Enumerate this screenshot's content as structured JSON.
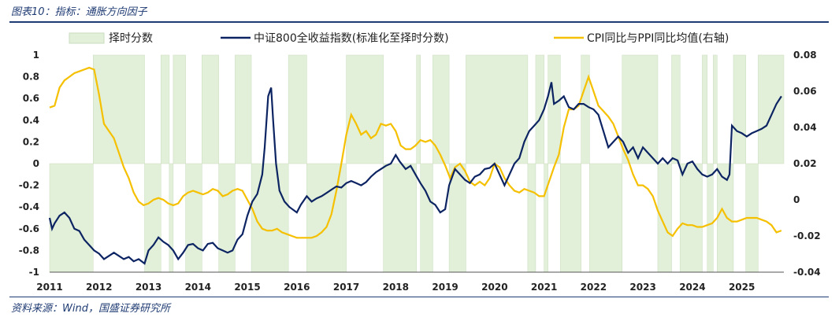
{
  "header": {
    "title": "图表10：指标：通胀方向因子"
  },
  "footer": {
    "source": "资料来源：Wind，国盛证券研究所"
  },
  "chart_data": {
    "type": "line",
    "xlim": [
      2011,
      2025.85
    ],
    "ylim_left": [
      -1,
      1
    ],
    "ylim_right": [
      -0.04,
      0.08
    ],
    "x_ticks": [
      "2011",
      "2012",
      "2013",
      "2014",
      "2015",
      "2016",
      "2017",
      "2018",
      "2019",
      "2020",
      "2021",
      "2022",
      "2023",
      "2024",
      "2025"
    ],
    "y_left_ticks": [
      "1",
      "0.8",
      "0.6",
      "0.4",
      "0.2",
      "0",
      "-0.2",
      "-0.4",
      "-0.6",
      "-0.8",
      "-1"
    ],
    "y_right_ticks": [
      "0.08",
      "0.06",
      "0.04",
      "0.02",
      "0",
      "-0.02",
      "-0.04"
    ],
    "colors": {
      "timing": "#e2f0d9",
      "csi800": "#0d2463",
      "cpippi": "#f5c000"
    },
    "timing": {
      "name": "择时分数",
      "periods": [
        {
          "from": 2011.0,
          "to": 2011.88,
          "value": -1
        },
        {
          "from": 2011.88,
          "to": 2012.92,
          "value": 1
        },
        {
          "from": 2012.92,
          "to": 2013.25,
          "value": -1
        },
        {
          "from": 2013.25,
          "to": 2013.42,
          "value": 1
        },
        {
          "from": 2013.42,
          "to": 2013.5,
          "value": -1
        },
        {
          "from": 2013.5,
          "to": 2013.75,
          "value": 1
        },
        {
          "from": 2013.75,
          "to": 2014.08,
          "value": -1
        },
        {
          "from": 2014.08,
          "to": 2014.42,
          "value": 1
        },
        {
          "from": 2014.42,
          "to": 2014.75,
          "value": -1
        },
        {
          "from": 2014.75,
          "to": 2015.08,
          "value": 1
        },
        {
          "from": 2015.08,
          "to": 2015.83,
          "value": -1
        },
        {
          "from": 2015.83,
          "to": 2016.2,
          "value": 1
        },
        {
          "from": 2016.2,
          "to": 2017.0,
          "value": -1
        },
        {
          "from": 2017.0,
          "to": 2017.75,
          "value": 1
        },
        {
          "from": 2017.75,
          "to": 2018.42,
          "value": -1
        },
        {
          "from": 2018.42,
          "to": 2018.5,
          "value": 1
        },
        {
          "from": 2018.5,
          "to": 2018.75,
          "value": -1
        },
        {
          "from": 2018.75,
          "to": 2019.08,
          "value": 1
        },
        {
          "from": 2019.08,
          "to": 2019.42,
          "value": -1
        },
        {
          "from": 2019.42,
          "to": 2020.67,
          "value": 1
        },
        {
          "from": 2020.67,
          "to": 2020.83,
          "value": -1
        },
        {
          "from": 2020.83,
          "to": 2021.0,
          "value": 1
        },
        {
          "from": 2021.0,
          "to": 2021.08,
          "value": -1
        },
        {
          "from": 2021.08,
          "to": 2021.33,
          "value": 1
        },
        {
          "from": 2021.33,
          "to": 2021.75,
          "value": -1
        },
        {
          "from": 2021.75,
          "to": 2021.92,
          "value": 1
        },
        {
          "from": 2021.92,
          "to": 2022.58,
          "value": -1
        },
        {
          "from": 2022.58,
          "to": 2023.3,
          "value": 1
        },
        {
          "from": 2023.3,
          "to": 2023.58,
          "value": -1
        },
        {
          "from": 2023.58,
          "to": 2023.75,
          "value": 1
        },
        {
          "from": 2023.75,
          "to": 2024.2,
          "value": -1
        },
        {
          "from": 2024.2,
          "to": 2024.3,
          "value": 1
        },
        {
          "from": 2024.3,
          "to": 2024.42,
          "value": -1
        },
        {
          "from": 2024.42,
          "to": 2024.5,
          "value": 1
        },
        {
          "from": 2024.5,
          "to": 2024.83,
          "value": -1
        },
        {
          "from": 2024.83,
          "to": 2025.08,
          "value": 1
        },
        {
          "from": 2025.08,
          "to": 2025.33,
          "value": -1
        },
        {
          "from": 2025.33,
          "to": 2025.85,
          "value": 1
        }
      ]
    },
    "series": [
      {
        "name": "中证800全收益指数(标准化至择时分数)",
        "axis": "left",
        "x": [
          2011.0,
          2011.05,
          2011.1,
          2011.2,
          2011.3,
          2011.4,
          2011.5,
          2011.6,
          2011.7,
          2011.8,
          2011.9,
          2012.0,
          2012.1,
          2012.2,
          2012.3,
          2012.4,
          2012.5,
          2012.6,
          2012.7,
          2012.8,
          2012.92,
          2013.0,
          2013.1,
          2013.2,
          2013.3,
          2013.4,
          2013.5,
          2013.6,
          2013.7,
          2013.8,
          2013.9,
          2014.0,
          2014.1,
          2014.2,
          2014.3,
          2014.4,
          2014.5,
          2014.6,
          2014.7,
          2014.8,
          2014.9,
          2015.0,
          2015.1,
          2015.2,
          2015.3,
          2015.35,
          2015.42,
          2015.48,
          2015.52,
          2015.58,
          2015.65,
          2015.75,
          2015.85,
          2016.0,
          2016.08,
          2016.2,
          2016.3,
          2016.4,
          2016.5,
          2016.6,
          2016.7,
          2016.8,
          2016.9,
          2017.0,
          2017.1,
          2017.2,
          2017.3,
          2017.4,
          2017.5,
          2017.6,
          2017.7,
          2017.8,
          2017.9,
          2018.0,
          2018.08,
          2018.2,
          2018.3,
          2018.4,
          2018.5,
          2018.6,
          2018.7,
          2018.8,
          2018.9,
          2019.0,
          2019.08,
          2019.2,
          2019.3,
          2019.4,
          2019.5,
          2019.6,
          2019.7,
          2019.8,
          2019.9,
          2020.0,
          2020.1,
          2020.2,
          2020.3,
          2020.4,
          2020.5,
          2020.6,
          2020.7,
          2020.8,
          2020.9,
          2021.0,
          2021.08,
          2021.15,
          2021.2,
          2021.3,
          2021.4,
          2021.5,
          2021.6,
          2021.7,
          2021.8,
          2021.9,
          2022.0,
          2022.1,
          2022.2,
          2022.3,
          2022.4,
          2022.5,
          2022.6,
          2022.7,
          2022.8,
          2022.9,
          2023.0,
          2023.1,
          2023.2,
          2023.3,
          2023.4,
          2023.5,
          2023.6,
          2023.7,
          2023.8,
          2023.9,
          2024.0,
          2024.1,
          2024.2,
          2024.3,
          2024.4,
          2024.5,
          2024.6,
          2024.7,
          2024.75,
          2024.8,
          2024.9,
          2025.0,
          2025.1,
          2025.2,
          2025.3,
          2025.4,
          2025.5,
          2025.6,
          2025.7,
          2025.8
        ],
        "values": [
          -0.5,
          -0.6,
          -0.55,
          -0.48,
          -0.45,
          -0.5,
          -0.6,
          -0.62,
          -0.7,
          -0.75,
          -0.8,
          -0.83,
          -0.88,
          -0.85,
          -0.82,
          -0.85,
          -0.88,
          -0.86,
          -0.9,
          -0.88,
          -0.92,
          -0.8,
          -0.75,
          -0.68,
          -0.72,
          -0.75,
          -0.8,
          -0.88,
          -0.82,
          -0.75,
          -0.74,
          -0.78,
          -0.8,
          -0.74,
          -0.73,
          -0.78,
          -0.8,
          -0.82,
          -0.8,
          -0.7,
          -0.65,
          -0.48,
          -0.35,
          -0.28,
          -0.1,
          0.15,
          0.62,
          0.7,
          0.4,
          0.0,
          -0.25,
          -0.35,
          -0.4,
          -0.45,
          -0.38,
          -0.3,
          -0.35,
          -0.32,
          -0.3,
          -0.27,
          -0.24,
          -0.21,
          -0.22,
          -0.18,
          -0.16,
          -0.18,
          -0.2,
          -0.17,
          -0.12,
          -0.08,
          -0.05,
          -0.02,
          0.0,
          0.08,
          0.02,
          -0.05,
          -0.02,
          -0.1,
          -0.18,
          -0.25,
          -0.35,
          -0.38,
          -0.45,
          -0.42,
          -0.2,
          -0.05,
          -0.1,
          -0.15,
          -0.18,
          -0.12,
          -0.1,
          -0.05,
          -0.04,
          0.0,
          -0.1,
          -0.2,
          -0.1,
          0.0,
          0.05,
          0.2,
          0.3,
          0.35,
          0.4,
          0.5,
          0.62,
          0.75,
          0.55,
          0.58,
          0.62,
          0.52,
          0.5,
          0.55,
          0.55,
          0.52,
          0.5,
          0.45,
          0.3,
          0.15,
          0.2,
          0.25,
          0.2,
          0.1,
          0.15,
          0.05,
          0.15,
          0.1,
          0.05,
          0.0,
          0.05,
          0.0,
          0.05,
          0.03,
          -0.1,
          0.0,
          0.02,
          -0.05,
          -0.1,
          -0.12,
          -0.1,
          -0.05,
          -0.12,
          -0.15,
          -0.1,
          0.35,
          0.3,
          0.28,
          0.25,
          0.28,
          0.3,
          0.32,
          0.35,
          0.45,
          0.55,
          0.62
        ]
      },
      {
        "name": "CPI同比与PPI同比均值(右轴)",
        "axis": "right",
        "x": [
          2011.0,
          2011.1,
          2011.2,
          2011.3,
          2011.4,
          2011.5,
          2011.6,
          2011.7,
          2011.8,
          2011.9,
          2012.0,
          2012.1,
          2012.2,
          2012.3,
          2012.4,
          2012.5,
          2012.6,
          2012.7,
          2012.8,
          2012.9,
          2013.0,
          2013.1,
          2013.2,
          2013.3,
          2013.4,
          2013.5,
          2013.6,
          2013.7,
          2013.8,
          2013.9,
          2014.0,
          2014.1,
          2014.2,
          2014.3,
          2014.4,
          2014.5,
          2014.6,
          2014.7,
          2014.8,
          2014.9,
          2015.0,
          2015.1,
          2015.2,
          2015.3,
          2015.4,
          2015.5,
          2015.6,
          2015.7,
          2015.8,
          2015.9,
          2016.0,
          2016.1,
          2016.2,
          2016.3,
          2016.4,
          2016.5,
          2016.6,
          2016.7,
          2016.8,
          2016.9,
          2017.0,
          2017.1,
          2017.2,
          2017.3,
          2017.4,
          2017.5,
          2017.6,
          2017.7,
          2017.8,
          2017.9,
          2018.0,
          2018.1,
          2018.2,
          2018.3,
          2018.4,
          2018.5,
          2018.6,
          2018.7,
          2018.8,
          2018.9,
          2019.0,
          2019.1,
          2019.2,
          2019.3,
          2019.4,
          2019.5,
          2019.6,
          2019.7,
          2019.8,
          2019.9,
          2020.0,
          2020.1,
          2020.2,
          2020.3,
          2020.4,
          2020.5,
          2020.6,
          2020.7,
          2020.8,
          2020.9,
          2021.0,
          2021.1,
          2021.2,
          2021.3,
          2021.4,
          2021.5,
          2021.6,
          2021.7,
          2021.8,
          2021.9,
          2022.0,
          2022.1,
          2022.2,
          2022.3,
          2022.4,
          2022.5,
          2022.6,
          2022.7,
          2022.8,
          2022.9,
          2023.0,
          2023.1,
          2023.2,
          2023.3,
          2023.4,
          2023.5,
          2023.6,
          2023.7,
          2023.8,
          2023.9,
          2024.0,
          2024.1,
          2024.2,
          2024.3,
          2024.4,
          2024.5,
          2024.6,
          2024.7,
          2024.8,
          2024.9,
          2025.0,
          2025.1,
          2025.2,
          2025.3,
          2025.4,
          2025.5,
          2025.6,
          2025.7,
          2025.8
        ],
        "values": [
          0.051,
          0.052,
          0.062,
          0.066,
          0.068,
          0.07,
          0.071,
          0.072,
          0.073,
          0.072,
          0.058,
          0.042,
          0.038,
          0.034,
          0.026,
          0.018,
          0.012,
          0.004,
          -0.001,
          -0.003,
          -0.002,
          0.0,
          0.001,
          0.0,
          -0.002,
          -0.003,
          -0.002,
          0.002,
          0.004,
          0.005,
          0.004,
          0.003,
          0.004,
          0.006,
          0.005,
          0.002,
          0.003,
          0.005,
          0.006,
          0.005,
          0.0,
          -0.005,
          -0.012,
          -0.016,
          -0.017,
          -0.017,
          -0.016,
          -0.018,
          -0.019,
          -0.02,
          -0.021,
          -0.021,
          -0.021,
          -0.021,
          -0.02,
          -0.018,
          -0.015,
          -0.008,
          0.005,
          0.02,
          0.036,
          0.047,
          0.042,
          0.036,
          0.038,
          0.034,
          0.036,
          0.042,
          0.041,
          0.042,
          0.038,
          0.03,
          0.028,
          0.028,
          0.03,
          0.033,
          0.032,
          0.033,
          0.03,
          0.025,
          0.019,
          0.012,
          0.018,
          0.02,
          0.016,
          0.01,
          0.008,
          0.01,
          0.008,
          0.012,
          0.02,
          0.018,
          0.012,
          0.008,
          0.005,
          0.004,
          0.006,
          0.005,
          0.004,
          0.002,
          0.002,
          0.01,
          0.018,
          0.025,
          0.04,
          0.05,
          0.05,
          0.052,
          0.06,
          0.068,
          0.06,
          0.052,
          0.049,
          0.046,
          0.042,
          0.035,
          0.028,
          0.022,
          0.014,
          0.008,
          0.008,
          0.006,
          0.002,
          -0.006,
          -0.012,
          -0.018,
          -0.02,
          -0.016,
          -0.013,
          -0.014,
          -0.014,
          -0.015,
          -0.015,
          -0.014,
          -0.013,
          -0.01,
          -0.005,
          -0.01,
          -0.012,
          -0.012,
          -0.011,
          -0.01,
          -0.01,
          -0.01,
          -0.011,
          -0.012,
          -0.014,
          -0.018,
          -0.017
        ]
      }
    ]
  }
}
